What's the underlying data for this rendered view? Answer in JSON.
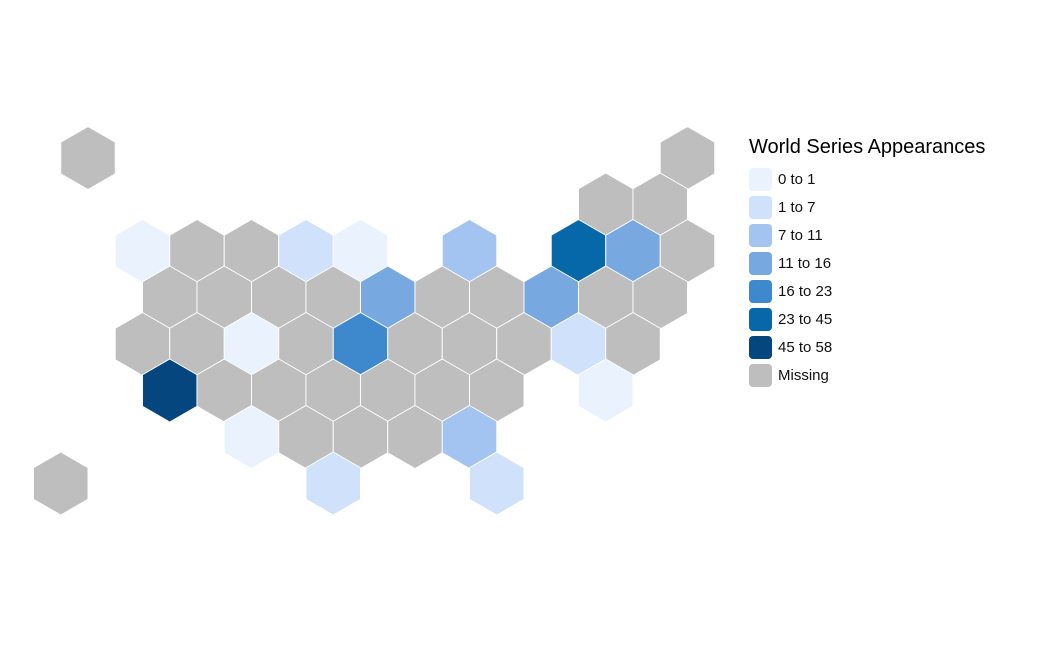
{
  "legend": {
    "title": "World Series Appearances",
    "items": [
      {
        "label": "0 to 1",
        "color": "#eaf2fd"
      },
      {
        "label": "1 to 7",
        "color": "#cfe1fb"
      },
      {
        "label": "7 to 11",
        "color": "#a3c4f0"
      },
      {
        "label": "11 to 16",
        "color": "#77a9e0"
      },
      {
        "label": "16 to 23",
        "color": "#3e89ce"
      },
      {
        "label": "23 to 45",
        "color": "#0668a8"
      },
      {
        "label": "45 to 58",
        "color": "#05467f"
      },
      {
        "label": "Missing",
        "color": "#bebebe"
      }
    ]
  },
  "map_data": {
    "type": "hex-tile-map",
    "cells": [
      {
        "id": "AK",
        "bin": "Missing"
      },
      {
        "id": "ME",
        "bin": "Missing"
      },
      {
        "id": "VT",
        "bin": "Missing"
      },
      {
        "id": "NH",
        "bin": "Missing"
      },
      {
        "id": "WA",
        "bin": "0 to 1"
      },
      {
        "id": "ID",
        "bin": "Missing"
      },
      {
        "id": "MT",
        "bin": "Missing"
      },
      {
        "id": "ND",
        "bin": "1 to 7"
      },
      {
        "id": "MN",
        "bin": "0 to 1"
      },
      {
        "id": "WI",
        "bin": "7 to 11"
      },
      {
        "id": "NY",
        "bin": "23 to 45"
      },
      {
        "id": "MA",
        "bin": "11 to 16"
      },
      {
        "id": "RI",
        "bin": "Missing"
      },
      {
        "id": "OR",
        "bin": "Missing"
      },
      {
        "id": "NV",
        "bin": "Missing"
      },
      {
        "id": "WY",
        "bin": "Missing"
      },
      {
        "id": "SD",
        "bin": "Missing"
      },
      {
        "id": "IA",
        "bin": "11 to 16"
      },
      {
        "id": "IN",
        "bin": "Missing"
      },
      {
        "id": "OH",
        "bin": "Missing"
      },
      {
        "id": "PA",
        "bin": "11 to 16"
      },
      {
        "id": "NJ",
        "bin": "Missing"
      },
      {
        "id": "CT",
        "bin": "Missing"
      },
      {
        "id": "CA",
        "bin": "Missing"
      },
      {
        "id": "UT",
        "bin": "Missing"
      },
      {
        "id": "CO",
        "bin": "0 to 1"
      },
      {
        "id": "NE",
        "bin": "Missing"
      },
      {
        "id": "MO",
        "bin": "16 to 23"
      },
      {
        "id": "KY",
        "bin": "Missing"
      },
      {
        "id": "WV",
        "bin": "Missing"
      },
      {
        "id": "VA",
        "bin": "Missing"
      },
      {
        "id": "MD",
        "bin": "1 to 7"
      },
      {
        "id": "DE",
        "bin": "Missing"
      },
      {
        "id": "AZ",
        "bin": "45 to 58"
      },
      {
        "id": "NM",
        "bin": "Missing"
      },
      {
        "id": "KS",
        "bin": "Missing"
      },
      {
        "id": "AR",
        "bin": "Missing"
      },
      {
        "id": "TN",
        "bin": "Missing"
      },
      {
        "id": "NC",
        "bin": "Missing"
      },
      {
        "id": "SC",
        "bin": "Missing"
      },
      {
        "id": "DC",
        "bin": "0 to 1"
      },
      {
        "id": "OK",
        "bin": "0 to 1"
      },
      {
        "id": "LA",
        "bin": "Missing"
      },
      {
        "id": "MS",
        "bin": "Missing"
      },
      {
        "id": "AL",
        "bin": "Missing"
      },
      {
        "id": "GA",
        "bin": "7 to 11"
      },
      {
        "id": "TX",
        "bin": "1 to 7"
      },
      {
        "id": "FL",
        "bin": "1 to 7"
      },
      {
        "id": "HI",
        "bin": "Missing"
      }
    ]
  }
}
